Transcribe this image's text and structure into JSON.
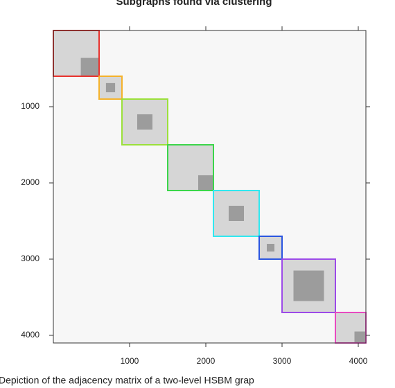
{
  "chart_data": {
    "type": "block-matrix",
    "title": "Subgraphs found via clustering",
    "caption": "Depiction of the adjacency matrix of a two-level HSBM grap",
    "xlim": [
      0,
      4100
    ],
    "ylim": [
      0,
      4100
    ],
    "xticks": [
      1000,
      2000,
      3000,
      4000
    ],
    "yticks": [
      1000,
      2000,
      3000,
      4000
    ],
    "background_color": "#f7f7f7",
    "block_fill": "#d6d6d6",
    "sub_block_fill": "#9c9c9c",
    "blocks": [
      {
        "start": 0,
        "end": 600,
        "color": "#e8322d"
      },
      {
        "start": 600,
        "end": 900,
        "color": "#f5b22a"
      },
      {
        "start": 900,
        "end": 1500,
        "color": "#9be03a"
      },
      {
        "start": 1500,
        "end": 2100,
        "color": "#3bd64a"
      },
      {
        "start": 2100,
        "end": 2700,
        "color": "#30e8f0"
      },
      {
        "start": 2700,
        "end": 3000,
        "color": "#2a55e0"
      },
      {
        "start": 3000,
        "end": 3700,
        "color": "#9c4ae8"
      },
      {
        "start": 3700,
        "end": 4100,
        "color": "#e84ac0"
      }
    ],
    "sub_blocks": [
      {
        "start": 360,
        "end": 600
      },
      {
        "start": 690,
        "end": 810
      },
      {
        "start": 1100,
        "end": 1300
      },
      {
        "start": 1900,
        "end": 2100
      },
      {
        "start": 2300,
        "end": 2500
      },
      {
        "start": 2800,
        "end": 2900
      },
      {
        "start": 3150,
        "end": 3550
      },
      {
        "start": 3950,
        "end": 4100
      }
    ]
  }
}
